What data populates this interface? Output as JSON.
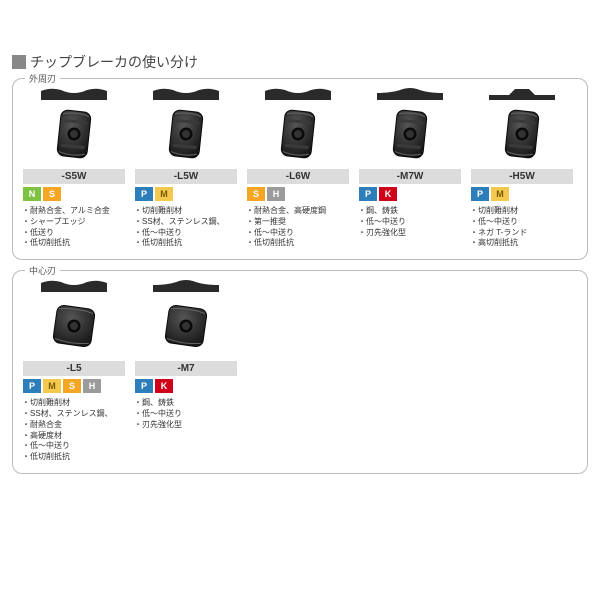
{
  "title": "チップブレーカの使い分け",
  "tagColors": {
    "N": "#7ec242",
    "S": "#f5a623",
    "P": "#2e7ebb",
    "M": "#f2c94c",
    "H": "#9b9b9b",
    "K": "#d0021b"
  },
  "groups": [
    {
      "label": "外周刃",
      "cards": [
        {
          "chipShape": "concave",
          "insertType": "rect",
          "code": "-S5W",
          "tags": [
            "N",
            "S"
          ],
          "bullets": [
            "耐熱合金、アルミ合金",
            "シャープエッジ",
            "低送り",
            "低切削抵抗"
          ]
        },
        {
          "chipShape": "concave",
          "insertType": "rect",
          "code": "-L5W",
          "tags": [
            "P",
            "M"
          ],
          "bullets": [
            "切削難削材",
            "SS材、ステンレス鋼、",
            "低～中送り",
            "低切削抵抗"
          ]
        },
        {
          "chipShape": "concave",
          "insertType": "rect",
          "code": "-L6W",
          "tags": [
            "S",
            "H"
          ],
          "bullets": [
            "耐熱合金、高硬度鋼",
            "第一推奨",
            "低～中送り",
            "低切削抵抗"
          ]
        },
        {
          "chipShape": "convex",
          "insertType": "rect",
          "code": "-M7W",
          "tags": [
            "P",
            "K"
          ],
          "bullets": [
            "鋼、鋳鉄",
            "低～中送り",
            "刃先強化型"
          ]
        },
        {
          "chipShape": "step",
          "insertType": "rect",
          "code": "-H5W",
          "tags": [
            "P",
            "M"
          ],
          "bullets": [
            "切削難削材",
            "低～中送り",
            "ネガ T-ランド",
            "高切削抵抗"
          ]
        }
      ]
    },
    {
      "label": "中心刃",
      "cards": [
        {
          "chipShape": "concave",
          "insertType": "square",
          "code": "-L5",
          "tags": [
            "P",
            "M",
            "S",
            "H"
          ],
          "bullets": [
            "切削難削材",
            "SS材、ステンレス鋼、",
            "耐熱合金",
            "高硬度材",
            "低～中送り",
            "低切削抵抗"
          ]
        },
        {
          "chipShape": "convex",
          "insertType": "square",
          "code": "-M7",
          "tags": [
            "P",
            "K"
          ],
          "bullets": [
            "鋼、鋳鉄",
            "低～中送り",
            "刃先強化型"
          ]
        }
      ]
    }
  ]
}
